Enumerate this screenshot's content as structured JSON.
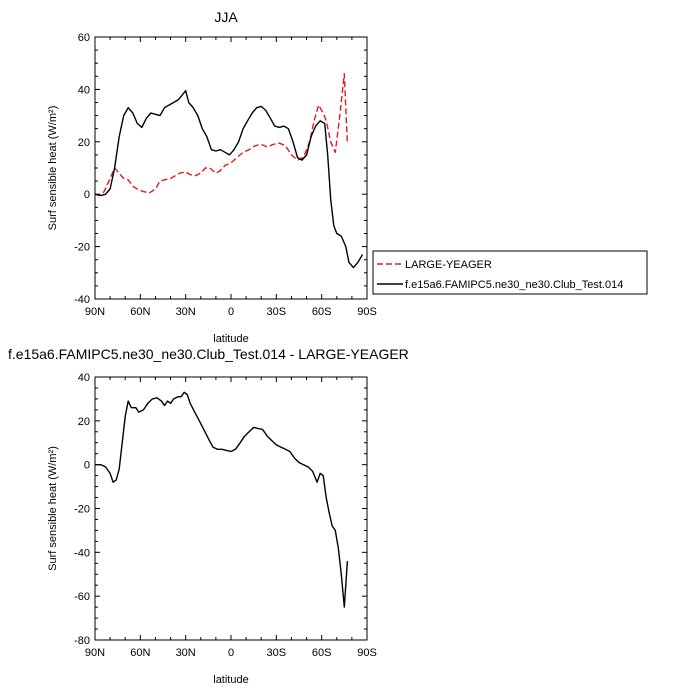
{
  "chart_data": [
    {
      "type": "line",
      "title": "JJA",
      "xlabel": "latitude",
      "ylabel": "Surf sensible heat (W/m²)",
      "xlim": [
        90,
        -90
      ],
      "ylim": [
        -40,
        60
      ],
      "x_ticks": [
        90,
        60,
        30,
        0,
        -30,
        -60,
        -90
      ],
      "x_tick_labels": [
        "90N",
        "60N",
        "30N",
        "0",
        "30S",
        "60S",
        "90S"
      ],
      "y_ticks": [
        -40,
        -20,
        0,
        20,
        40,
        60
      ],
      "y_tick_labels": [
        "-40",
        "-20",
        "0",
        "20",
        "40",
        "60"
      ],
      "grid": false,
      "legend_position": "right",
      "series": [
        {
          "name": "LARGE-YEAGER",
          "color": "#e31a1c",
          "dash": "dashed",
          "points": [
            [
              90,
              0
            ],
            [
              87,
              -0.5
            ],
            [
              84,
              1
            ],
            [
              80,
              6
            ],
            [
              77,
              10
            ],
            [
              74,
              8
            ],
            [
              71,
              6
            ],
            [
              68,
              5.5
            ],
            [
              65,
              3
            ],
            [
              62,
              2
            ],
            [
              58,
              1
            ],
            [
              54,
              0.5
            ],
            [
              50,
              2
            ],
            [
              47,
              5
            ],
            [
              44,
              5.5
            ],
            [
              40,
              6
            ],
            [
              37,
              7
            ],
            [
              34,
              8
            ],
            [
              30,
              8.5
            ],
            [
              27,
              7.5
            ],
            [
              24,
              7
            ],
            [
              20,
              8
            ],
            [
              17,
              10
            ],
            [
              14,
              10
            ],
            [
              10,
              8
            ],
            [
              7,
              9
            ],
            [
              4,
              11
            ],
            [
              0,
              12
            ],
            [
              -4,
              14
            ],
            [
              -8,
              16
            ],
            [
              -12,
              17
            ],
            [
              -16,
              18.5
            ],
            [
              -20,
              19
            ],
            [
              -24,
              18
            ],
            [
              -28,
              19
            ],
            [
              -32,
              19.5
            ],
            [
              -36,
              18.5
            ],
            [
              -40,
              15
            ],
            [
              -44,
              13
            ],
            [
              -48,
              14
            ],
            [
              -52,
              20
            ],
            [
              -55,
              28
            ],
            [
              -58,
              34
            ],
            [
              -61,
              31
            ],
            [
              -63,
              28
            ],
            [
              -66,
              20
            ],
            [
              -69,
              16
            ],
            [
              -72,
              30
            ],
            [
              -75,
              46
            ],
            [
              -77,
              19
            ]
          ]
        },
        {
          "name": "f.e15a6.FAMIPC5.ne30_ne30.Club_Test.014",
          "color": "#000000",
          "dash": "solid",
          "points": [
            [
              90,
              0
            ],
            [
              86,
              -0.5
            ],
            [
              83,
              0
            ],
            [
              80,
              2
            ],
            [
              77,
              10
            ],
            [
              74,
              22
            ],
            [
              71,
              30
            ],
            [
              68,
              33
            ],
            [
              65,
              31
            ],
            [
              62,
              27
            ],
            [
              59,
              25.5
            ],
            [
              56,
              29
            ],
            [
              53,
              31
            ],
            [
              50,
              30.5
            ],
            [
              47,
              30
            ],
            [
              44,
              33
            ],
            [
              41,
              34
            ],
            [
              38,
              35
            ],
            [
              35,
              36
            ],
            [
              32,
              38
            ],
            [
              30,
              39.5
            ],
            [
              28,
              35
            ],
            [
              25,
              33
            ],
            [
              22,
              30
            ],
            [
              19,
              25
            ],
            [
              16,
              22
            ],
            [
              13,
              17
            ],
            [
              10,
              16.5
            ],
            [
              7,
              17
            ],
            [
              4,
              16
            ],
            [
              1,
              15
            ],
            [
              -2,
              17
            ],
            [
              -5,
              20
            ],
            [
              -8,
              25
            ],
            [
              -11,
              28
            ],
            [
              -14,
              31
            ],
            [
              -17,
              33
            ],
            [
              -20,
              33.5
            ],
            [
              -23,
              32
            ],
            [
              -26,
              29
            ],
            [
              -29,
              26
            ],
            [
              -32,
              25.5
            ],
            [
              -35,
              26
            ],
            [
              -38,
              25
            ],
            [
              -41,
              20
            ],
            [
              -44,
              14
            ],
            [
              -47,
              13
            ],
            [
              -50,
              15
            ],
            [
              -53,
              22
            ],
            [
              -56,
              26
            ],
            [
              -59,
              28
            ],
            [
              -62,
              27
            ],
            [
              -64,
              15
            ],
            [
              -66,
              -2
            ],
            [
              -68,
              -12
            ],
            [
              -70,
              -15
            ],
            [
              -73,
              -16
            ],
            [
              -76,
              -20
            ],
            [
              -78,
              -26
            ],
            [
              -81,
              -28
            ],
            [
              -84,
              -26
            ],
            [
              -87,
              -23
            ]
          ]
        }
      ]
    },
    {
      "type": "line",
      "title": "f.e15a6.FAMIPC5.ne30_ne30.Club_Test.014 - LARGE-YEAGER",
      "xlabel": "latitude",
      "ylabel": "Surf sensible heat (W/m²)",
      "xlim": [
        90,
        -90
      ],
      "ylim": [
        -80,
        40
      ],
      "x_ticks": [
        90,
        60,
        30,
        0,
        -30,
        -60,
        -90
      ],
      "x_tick_labels": [
        "90N",
        "60N",
        "30N",
        "0",
        "30S",
        "60S",
        "90S"
      ],
      "y_ticks": [
        -80,
        -60,
        -40,
        -20,
        0,
        20,
        40
      ],
      "y_tick_labels": [
        "-80",
        "-60",
        "-40",
        "-20",
        "0",
        "20",
        "40"
      ],
      "grid": false,
      "series": [
        {
          "color": "#000000",
          "dash": "solid",
          "points": [
            [
              90,
              0
            ],
            [
              86,
              0
            ],
            [
              83,
              -1
            ],
            [
              80,
              -4
            ],
            [
              78,
              -8
            ],
            [
              76,
              -7
            ],
            [
              74,
              -2
            ],
            [
              72,
              10
            ],
            [
              70,
              22
            ],
            [
              68,
              29
            ],
            [
              66,
              26
            ],
            [
              63,
              26
            ],
            [
              61,
              24
            ],
            [
              58,
              25
            ],
            [
              55,
              28
            ],
            [
              52,
              30
            ],
            [
              49,
              30.5
            ],
            [
              46,
              29
            ],
            [
              44,
              27
            ],
            [
              42,
              29
            ],
            [
              40,
              28
            ],
            [
              38,
              30
            ],
            [
              35,
              31
            ],
            [
              33,
              31
            ],
            [
              31,
              33
            ],
            [
              29,
              32
            ],
            [
              27,
              28
            ],
            [
              24,
              24
            ],
            [
              21,
              20
            ],
            [
              18,
              16
            ],
            [
              15,
              12
            ],
            [
              12,
              8
            ],
            [
              9,
              7
            ],
            [
              6,
              7
            ],
            [
              3,
              6.5
            ],
            [
              0,
              6
            ],
            [
              -3,
              7
            ],
            [
              -6,
              10
            ],
            [
              -9,
              13
            ],
            [
              -12,
              15
            ],
            [
              -15,
              17
            ],
            [
              -18,
              16.5
            ],
            [
              -21,
              16
            ],
            [
              -24,
              13
            ],
            [
              -27,
              11
            ],
            [
              -30,
              9
            ],
            [
              -33,
              8
            ],
            [
              -36,
              7
            ],
            [
              -39,
              6
            ],
            [
              -42,
              3
            ],
            [
              -45,
              1
            ],
            [
              -48,
              0
            ],
            [
              -51,
              -1
            ],
            [
              -54,
              -3
            ],
            [
              -57,
              -8
            ],
            [
              -59,
              -4
            ],
            [
              -61,
              -5
            ],
            [
              -63,
              -15
            ],
            [
              -65,
              -22
            ],
            [
              -67,
              -28
            ],
            [
              -69,
              -30
            ],
            [
              -71,
              -38
            ],
            [
              -73,
              -50
            ],
            [
              -75,
              -65
            ],
            [
              -77,
              -44
            ]
          ]
        }
      ]
    }
  ]
}
